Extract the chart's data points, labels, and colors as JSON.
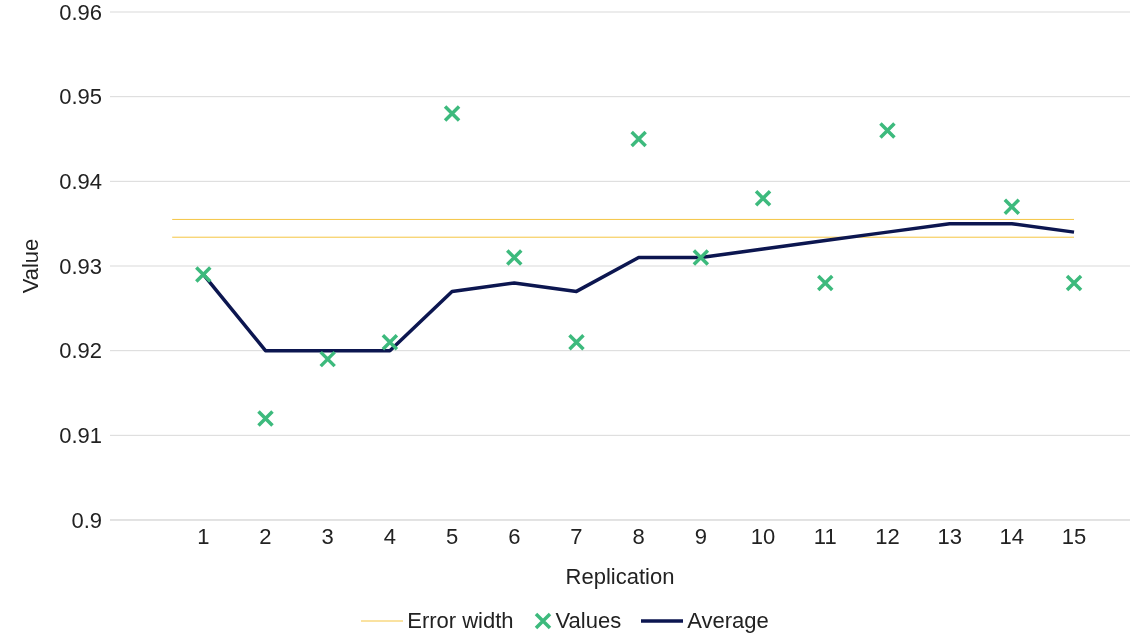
{
  "chart_data": {
    "type": "scatter",
    "xlabel": "Replication",
    "ylabel": "Value",
    "xlim": [
      -0.5,
      15.9
    ],
    "xticks": [
      1,
      2,
      3,
      4,
      5,
      6,
      7,
      8,
      9,
      10,
      11,
      12,
      13,
      14,
      15
    ],
    "ylim": [
      0.9,
      0.96
    ],
    "yticks": [
      0.9,
      0.91,
      0.92,
      0.93,
      0.94,
      0.95,
      0.96
    ],
    "grid": "y",
    "legend": "bottom",
    "series": [
      {
        "name": "Error width",
        "type": "line",
        "color": "#f5c542",
        "x": [
          0.5,
          15
        ],
        "values": [
          0.9355,
          0.9355
        ]
      },
      {
        "type": "line",
        "color": "#f5c542",
        "x": [
          0.5,
          15
        ],
        "values": [
          0.9334,
          0.9334
        ]
      },
      {
        "name": "Values",
        "marker": "cross",
        "color": "#3dba7d",
        "x": [
          1,
          2,
          3,
          4,
          5,
          6,
          7,
          8,
          9,
          10,
          11,
          12,
          13,
          14,
          15
        ],
        "values": [
          0.929,
          0.912,
          0.919,
          0.921,
          0.948,
          0.931,
          0.921,
          0.945,
          0.931,
          0.938,
          0.928,
          0.946,
          null,
          0.937,
          0.928
        ]
      },
      {
        "name": "Average",
        "type": "line",
        "marker": "none",
        "color": "#0c1650",
        "x": [
          1,
          2,
          3,
          4,
          5,
          6,
          7,
          8,
          9,
          10,
          11,
          12,
          13,
          14,
          15
        ],
        "values": [
          0.929,
          0.92,
          0.92,
          0.92,
          0.927,
          0.928,
          0.927,
          0.931,
          0.931,
          0.932,
          0.933,
          0.934,
          0.935,
          0.935,
          0.934
        ]
      }
    ]
  }
}
